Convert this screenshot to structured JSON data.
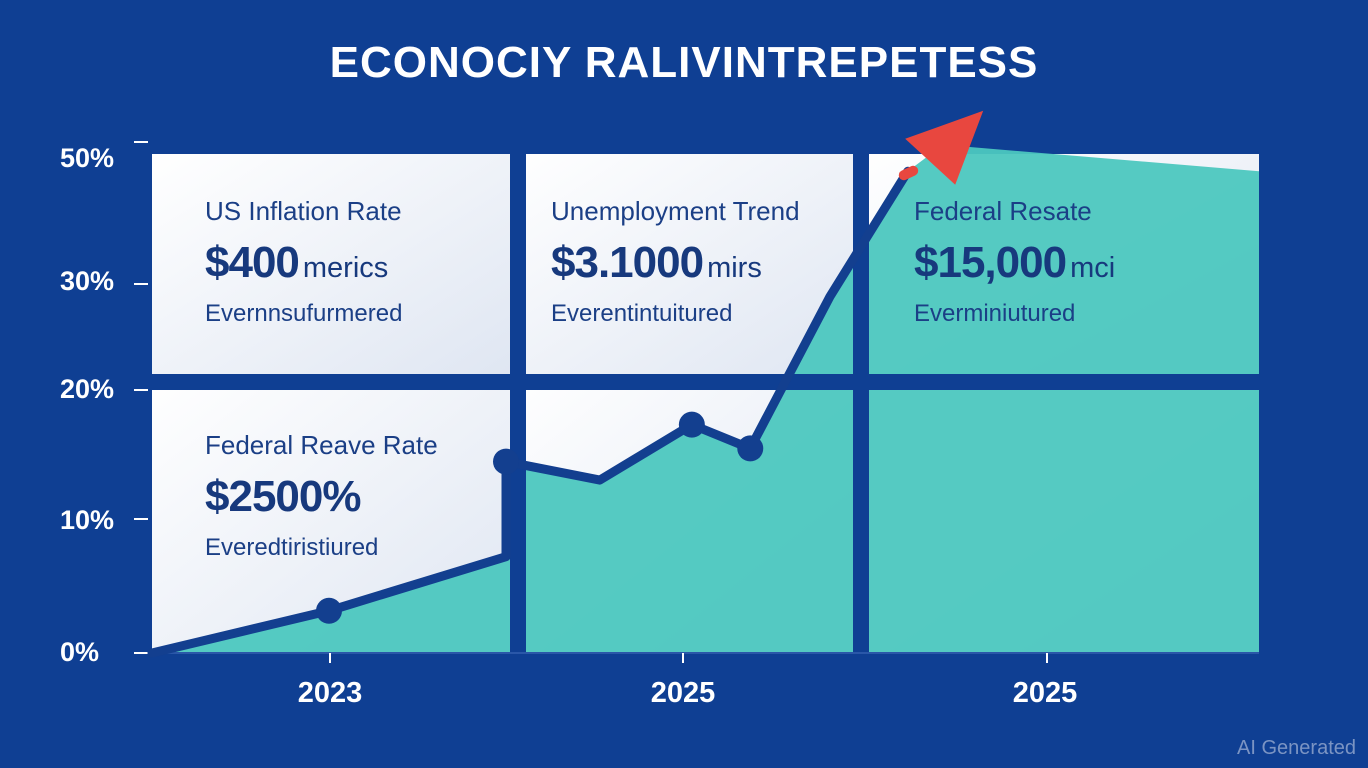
{
  "title": "ECONOCIY RALIVINTREPETESS",
  "watermark": "AI Generated",
  "colors": {
    "background": "#0f3f93",
    "area_fill": "#4cc7bf",
    "line": "#133f8f",
    "arrow": "#e8473f",
    "panel": "#ffffff"
  },
  "panels": [
    {
      "title": "US Inflation Rate",
      "value": "$400",
      "unit": "merics",
      "subtitle": "Evernnsufurmered"
    },
    {
      "title": "Unemployment Trend",
      "value": "$3.1000",
      "unit": "mirs",
      "subtitle": "Everentintuitured"
    },
    {
      "title": "Federal Resate",
      "value": "$15,000",
      "unit": "mci",
      "subtitle": "Everminiutured"
    },
    {
      "title": "Federal Reave Rate",
      "value": "$2500%",
      "unit": "",
      "subtitle": "Everedtiristiured"
    }
  ],
  "chart_data": {
    "type": "area",
    "title": "ECONOCIY RALIVINTREPETESS",
    "y_tick_labels": [
      "50%",
      "30%",
      "20%",
      "10%",
      "0%"
    ],
    "x_tick_labels": [
      "2023",
      "2025",
      "2025"
    ],
    "series": [
      {
        "points": [
          {
            "x": 0.0,
            "y": 0.0,
            "marker": false
          },
          {
            "x": 1.0,
            "y": 3.2,
            "marker": true
          },
          {
            "x": 2.0,
            "y": 7.3,
            "marker": false
          },
          {
            "x": 2.0,
            "y": 14.5,
            "marker": true
          },
          {
            "x": 2.53,
            "y": 13.1,
            "marker": false
          },
          {
            "x": 3.05,
            "y": 17.3,
            "marker": true
          },
          {
            "x": 3.38,
            "y": 15.5,
            "marker": true
          },
          {
            "x": 3.83,
            "y": 27.0,
            "marker": false
          },
          {
            "x": 4.27,
            "y": 36.5,
            "marker": false
          }
        ]
      }
    ],
    "arrow_end": {
      "x": 4.47,
      "y": 38.5
    }
  }
}
